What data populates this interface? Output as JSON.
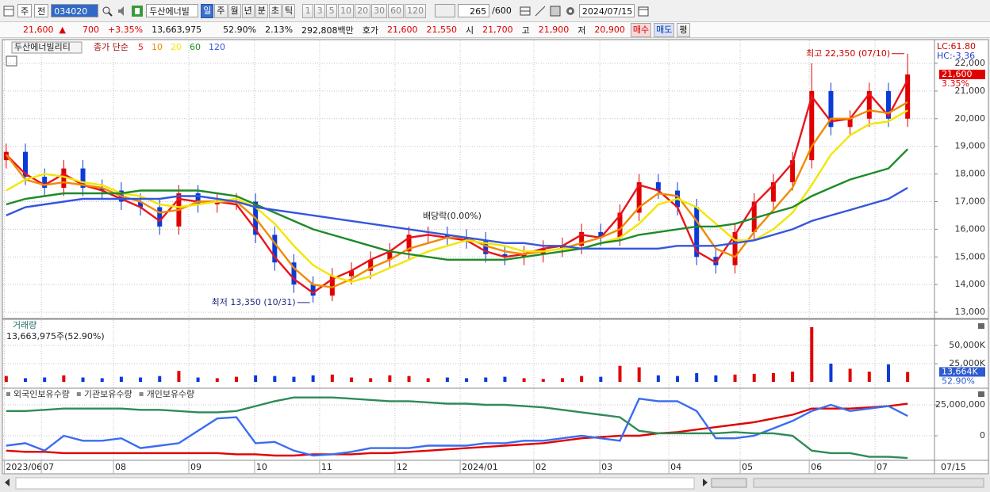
{
  "toolbar": {
    "market": "주",
    "mode": "전",
    "code": "034020",
    "name": "두산에너빌",
    "periods": [
      "일",
      "주",
      "월",
      "년",
      "분",
      "초",
      "틱"
    ],
    "intervals": [
      "1",
      "3",
      "5",
      "10",
      "20",
      "30",
      "60",
      "120"
    ],
    "count": "265",
    "max": "/600",
    "date": "2024/07/15"
  },
  "quote": {
    "price": "21,600",
    "arrow": "▲",
    "change": "700",
    "change_pct": "+3.35%",
    "volume": "13,663,975",
    "volume_ratio": "52.90%",
    "turnover": "2.13%",
    "amount": "292,808백만",
    "bid_label": "호가",
    "ask": "21,600",
    "bid": "21,550",
    "open_label": "시",
    "open": "21,700",
    "high_label": "고",
    "high": "21,900",
    "low_label": "저",
    "low": "20,900",
    "buy": "매수",
    "sell": "매도",
    "avg": "평"
  },
  "axis_end": "07/15",
  "chart_data": [
    {
      "type": "candlestick",
      "title": "두산에너빌리티",
      "subtitle": "종가 단순",
      "open": [
        18500,
        18800,
        17900,
        17500,
        18200,
        17500,
        17400,
        17000,
        16800,
        16100,
        17300,
        16900,
        17000,
        17000,
        15800,
        14800,
        14000,
        13600,
        14300,
        14500,
        14900,
        15200,
        15800,
        15800,
        15700,
        15600,
        15100,
        15000,
        15100,
        15300,
        15400,
        15900,
        15700,
        16600,
        17700,
        17400,
        16800,
        15000,
        14700,
        15900,
        17000,
        17700,
        18500,
        21000,
        19700,
        20000,
        21000,
        20000
      ],
      "high": [
        19100,
        19100,
        18200,
        18500,
        18500,
        17800,
        17700,
        17300,
        17100,
        17600,
        17600,
        17300,
        17300,
        17300,
        16100,
        15100,
        14300,
        14600,
        14800,
        15200,
        15500,
        16100,
        16100,
        16100,
        16000,
        15900,
        15400,
        15400,
        15600,
        15700,
        16200,
        16200,
        16900,
        18000,
        18000,
        17700,
        17100,
        15300,
        16200,
        17300,
        18000,
        18800,
        22000,
        21300,
        20300,
        21300,
        21300,
        22350
      ],
      "low": [
        18200,
        17600,
        17200,
        17200,
        17200,
        17100,
        16700,
        16500,
        15800,
        15800,
        16600,
        16600,
        16700,
        15500,
        14500,
        13700,
        13350,
        13400,
        14000,
        14200,
        14600,
        14900,
        15500,
        15400,
        15300,
        14800,
        14700,
        14700,
        14800,
        15000,
        15100,
        15400,
        15400,
        16300,
        17100,
        16500,
        14700,
        14400,
        14400,
        15600,
        16700,
        17400,
        18200,
        19400,
        19400,
        19700,
        19700,
        19700
      ],
      "close": [
        18800,
        17900,
        17500,
        18200,
        17500,
        17400,
        17000,
        16800,
        16100,
        17300,
        16900,
        17000,
        17000,
        15800,
        14800,
        14000,
        13600,
        14300,
        14500,
        14900,
        15200,
        15800,
        15800,
        15700,
        15600,
        15100,
        15000,
        15100,
        15300,
        15400,
        15900,
        15700,
        16600,
        17700,
        17400,
        16800,
        15000,
        14700,
        15900,
        17000,
        17700,
        18500,
        21000,
        19700,
        20000,
        21000,
        20000,
        21600
      ],
      "up_color": "#e00000",
      "down_color": "#0a3ad8",
      "series": [
        {
          "name": "5",
          "color": "#e8141c",
          "values": [
            18700,
            18000,
            17600,
            18000,
            17600,
            17400,
            17100,
            16800,
            16300,
            17100,
            17000,
            17000,
            16900,
            16000,
            15000,
            14200,
            13700,
            14200,
            14500,
            14900,
            15200,
            15700,
            15800,
            15700,
            15600,
            15200,
            15000,
            15100,
            15300,
            15400,
            15800,
            15700,
            16500,
            17600,
            17400,
            16800,
            15200,
            14800,
            15800,
            16900,
            17600,
            18400,
            20800,
            19900,
            20000,
            20900,
            20100,
            21400
          ]
        },
        {
          "name": "10",
          "color": "#f08a00",
          "values": [
            18700,
            17800,
            17600,
            17700,
            17600,
            17500,
            17200,
            17000,
            16600,
            16700,
            17000,
            17000,
            17000,
            16400,
            15500,
            14600,
            14000,
            13900,
            14200,
            14600,
            14900,
            15300,
            15500,
            15700,
            15700,
            15400,
            15200,
            15100,
            15200,
            15300,
            15500,
            15700,
            16000,
            16800,
            17300,
            17200,
            16300,
            15300,
            15000,
            15900,
            16700,
            17500,
            19000,
            20000,
            20000,
            20300,
            20200,
            20600
          ]
        },
        {
          "name": "20",
          "color": "#f2e600",
          "values": [
            17400,
            17800,
            18000,
            17900,
            17700,
            17600,
            17300,
            17200,
            16900,
            16800,
            16900,
            17000,
            17100,
            16800,
            16200,
            15400,
            14700,
            14300,
            14100,
            14300,
            14600,
            14900,
            15200,
            15400,
            15600,
            15500,
            15400,
            15200,
            15200,
            15300,
            15300,
            15500,
            15700,
            16200,
            16900,
            17100,
            16800,
            16200,
            15600,
            15600,
            16000,
            16600,
            17600,
            18700,
            19400,
            19800,
            19900,
            20300
          ]
        },
        {
          "name": "60",
          "color": "#1f8a2a",
          "values": [
            16900,
            17100,
            17200,
            17300,
            17300,
            17300,
            17300,
            17400,
            17400,
            17400,
            17400,
            17300,
            17200,
            16900,
            16600,
            16300,
            16000,
            15800,
            15600,
            15400,
            15200,
            15100,
            15000,
            14900,
            14900,
            14900,
            14900,
            15000,
            15100,
            15200,
            15300,
            15500,
            15600,
            15800,
            15900,
            16000,
            16100,
            16100,
            16200,
            16400,
            16600,
            16800,
            17200,
            17500,
            17800,
            18000,
            18200,
            18900
          ]
        },
        {
          "name": "120",
          "color": "#3456e0",
          "values": [
            16500,
            16800,
            16900,
            17000,
            17100,
            17100,
            17100,
            17100,
            17100,
            17200,
            17200,
            17100,
            17000,
            16800,
            16700,
            16600,
            16500,
            16400,
            16300,
            16200,
            16100,
            16000,
            15900,
            15800,
            15700,
            15600,
            15500,
            15500,
            15400,
            15400,
            15300,
            15300,
            15300,
            15300,
            15300,
            15400,
            15400,
            15400,
            15500,
            15600,
            15800,
            16000,
            16300,
            16500,
            16700,
            16900,
            17100,
            17500
          ]
        }
      ],
      "ylim": [
        12830,
        22860
      ],
      "yticks": [
        {
          "value": 13000,
          "label": "13,000"
        },
        {
          "value": 14000,
          "label": "14,000"
        },
        {
          "value": 15000,
          "label": "15,000"
        },
        {
          "value": 16000,
          "label": "16,000"
        },
        {
          "value": 17000,
          "label": "17,000"
        },
        {
          "value": 18000,
          "label": "18,000"
        },
        {
          "value": 19000,
          "label": "19,000"
        },
        {
          "value": 20000,
          "label": "20,000"
        },
        {
          "value": 21000,
          "label": "21,000"
        },
        {
          "value": 22000,
          "label": "22,000"
        }
      ],
      "xlim": [
        -0.2,
        48.4
      ],
      "xticks": [
        {
          "value": -0.1,
          "label": "2023/06"
        },
        {
          "value": 1.83,
          "label": "07"
        },
        {
          "value": 5.59,
          "label": "08"
        },
        {
          "value": 9.52,
          "label": "09"
        },
        {
          "value": 12.95,
          "label": "10"
        },
        {
          "value": 16.34,
          "label": "11"
        },
        {
          "value": 20.27,
          "label": "12"
        },
        {
          "value": 23.67,
          "label": "2024/01"
        },
        {
          "value": 27.51,
          "label": "02"
        },
        {
          "value": 30.95,
          "label": "03"
        },
        {
          "value": 34.55,
          "label": "04"
        },
        {
          "value": 38.27,
          "label": "05"
        },
        {
          "value": 41.87,
          "label": "06"
        },
        {
          "value": 45.3,
          "label": "07"
        }
      ],
      "grid": true,
      "high_note": {
        "text": "최고 22,350 (07/10)",
        "value": 22350
      },
      "low_note": {
        "text": "최저 13,350 (10/31)",
        "value": 13350
      },
      "event_note": "배당락(0.00%)",
      "lc": "LC:61.80",
      "hc": "HC:-3.36",
      "last_price": {
        "value": 21600,
        "label": "21,600"
      },
      "last_change": "3.35%"
    },
    {
      "type": "bar",
      "title": "거래량",
      "subtitle": "13,663,975주(52.90%)",
      "values": [
        8000,
        5000,
        6000,
        9000,
        6000,
        5000,
        7000,
        6000,
        8000,
        15000,
        6000,
        5000,
        7000,
        9000,
        8000,
        7000,
        9000,
        10000,
        6000,
        5000,
        9000,
        8000,
        5000,
        6000,
        5000,
        6000,
        7000,
        5000,
        4000,
        5000,
        8000,
        7000,
        22000,
        20000,
        9000,
        8000,
        12000,
        9000,
        10000,
        11000,
        12000,
        14000,
        75000,
        25000,
        18000,
        14000,
        24000,
        13664
      ],
      "up_color": "#e00000",
      "down_color": "#0a3ad8",
      "ylim": [
        0,
        83700
      ],
      "yticks": [
        {
          "value": 25000,
          "label": "25,000K"
        },
        {
          "value": 50000,
          "label": "50,000K"
        }
      ],
      "grid": true,
      "last_value": {
        "value": 13664,
        "label": "13,664K"
      },
      "last_ratio": "52.90%"
    },
    {
      "type": "line",
      "series": [
        {
          "name": "외국인보유수량",
          "color": "#e00000",
          "values": [
            -12000000,
            -13000000,
            -13000000,
            -14000000,
            -14000000,
            -14000000,
            -14000000,
            -14000000,
            -14000000,
            -14000000,
            -14000000,
            -14000000,
            -15000000,
            -15000000,
            -16000000,
            -16000000,
            -15000000,
            -15000000,
            -15000000,
            -14000000,
            -14000000,
            -13000000,
            -12000000,
            -11000000,
            -10000000,
            -9000000,
            -8000000,
            -7000000,
            -6000000,
            -4000000,
            -2000000,
            -1000000,
            0,
            0,
            2000000,
            3000000,
            5000000,
            7000000,
            9000000,
            11000000,
            14000000,
            17000000,
            22000000,
            22000000,
            22000000,
            23000000,
            24000000,
            26000000
          ]
        },
        {
          "name": "기관보유수량",
          "color": "#3a6cf0",
          "values": [
            -8000000,
            -6000000,
            -12000000,
            0,
            -4000000,
            -4000000,
            -2000000,
            -10000000,
            -8000000,
            -6000000,
            4000000,
            14000000,
            15000000,
            -6000000,
            -5000000,
            -12000000,
            -16000000,
            -15000000,
            -13000000,
            -10000000,
            -10000000,
            -10000000,
            -8000000,
            -8000000,
            -8000000,
            -6000000,
            -6000000,
            -4000000,
            -4000000,
            -2000000,
            0,
            -2000000,
            -4000000,
            30000000,
            28000000,
            28000000,
            20000000,
            -2000000,
            -2000000,
            0,
            6000000,
            12000000,
            20000000,
            25000000,
            20000000,
            22000000,
            24000000,
            16000000
          ]
        },
        {
          "name": "개인보유수량",
          "color": "#2e8b57",
          "values": [
            20000000,
            20000000,
            21000000,
            22000000,
            22000000,
            22000000,
            22000000,
            21000000,
            21000000,
            20000000,
            19000000,
            19000000,
            20000000,
            24000000,
            28000000,
            31000000,
            31000000,
            31000000,
            30000000,
            29000000,
            28000000,
            28000000,
            27000000,
            26000000,
            26000000,
            25000000,
            25000000,
            24000000,
            23000000,
            21000000,
            19000000,
            17000000,
            15000000,
            4000000,
            2000000,
            2000000,
            2000000,
            2000000,
            3000000,
            2000000,
            2000000,
            0,
            -12000000,
            -14000000,
            -14000000,
            -17000000,
            -17000000,
            -18000000
          ]
        }
      ],
      "ylim": [
        -19200000,
        37200000
      ],
      "yticks": [
        0,
        {
          "value": 25000000,
          "label": "25,000,000"
        }
      ],
      "grid": true
    }
  ]
}
